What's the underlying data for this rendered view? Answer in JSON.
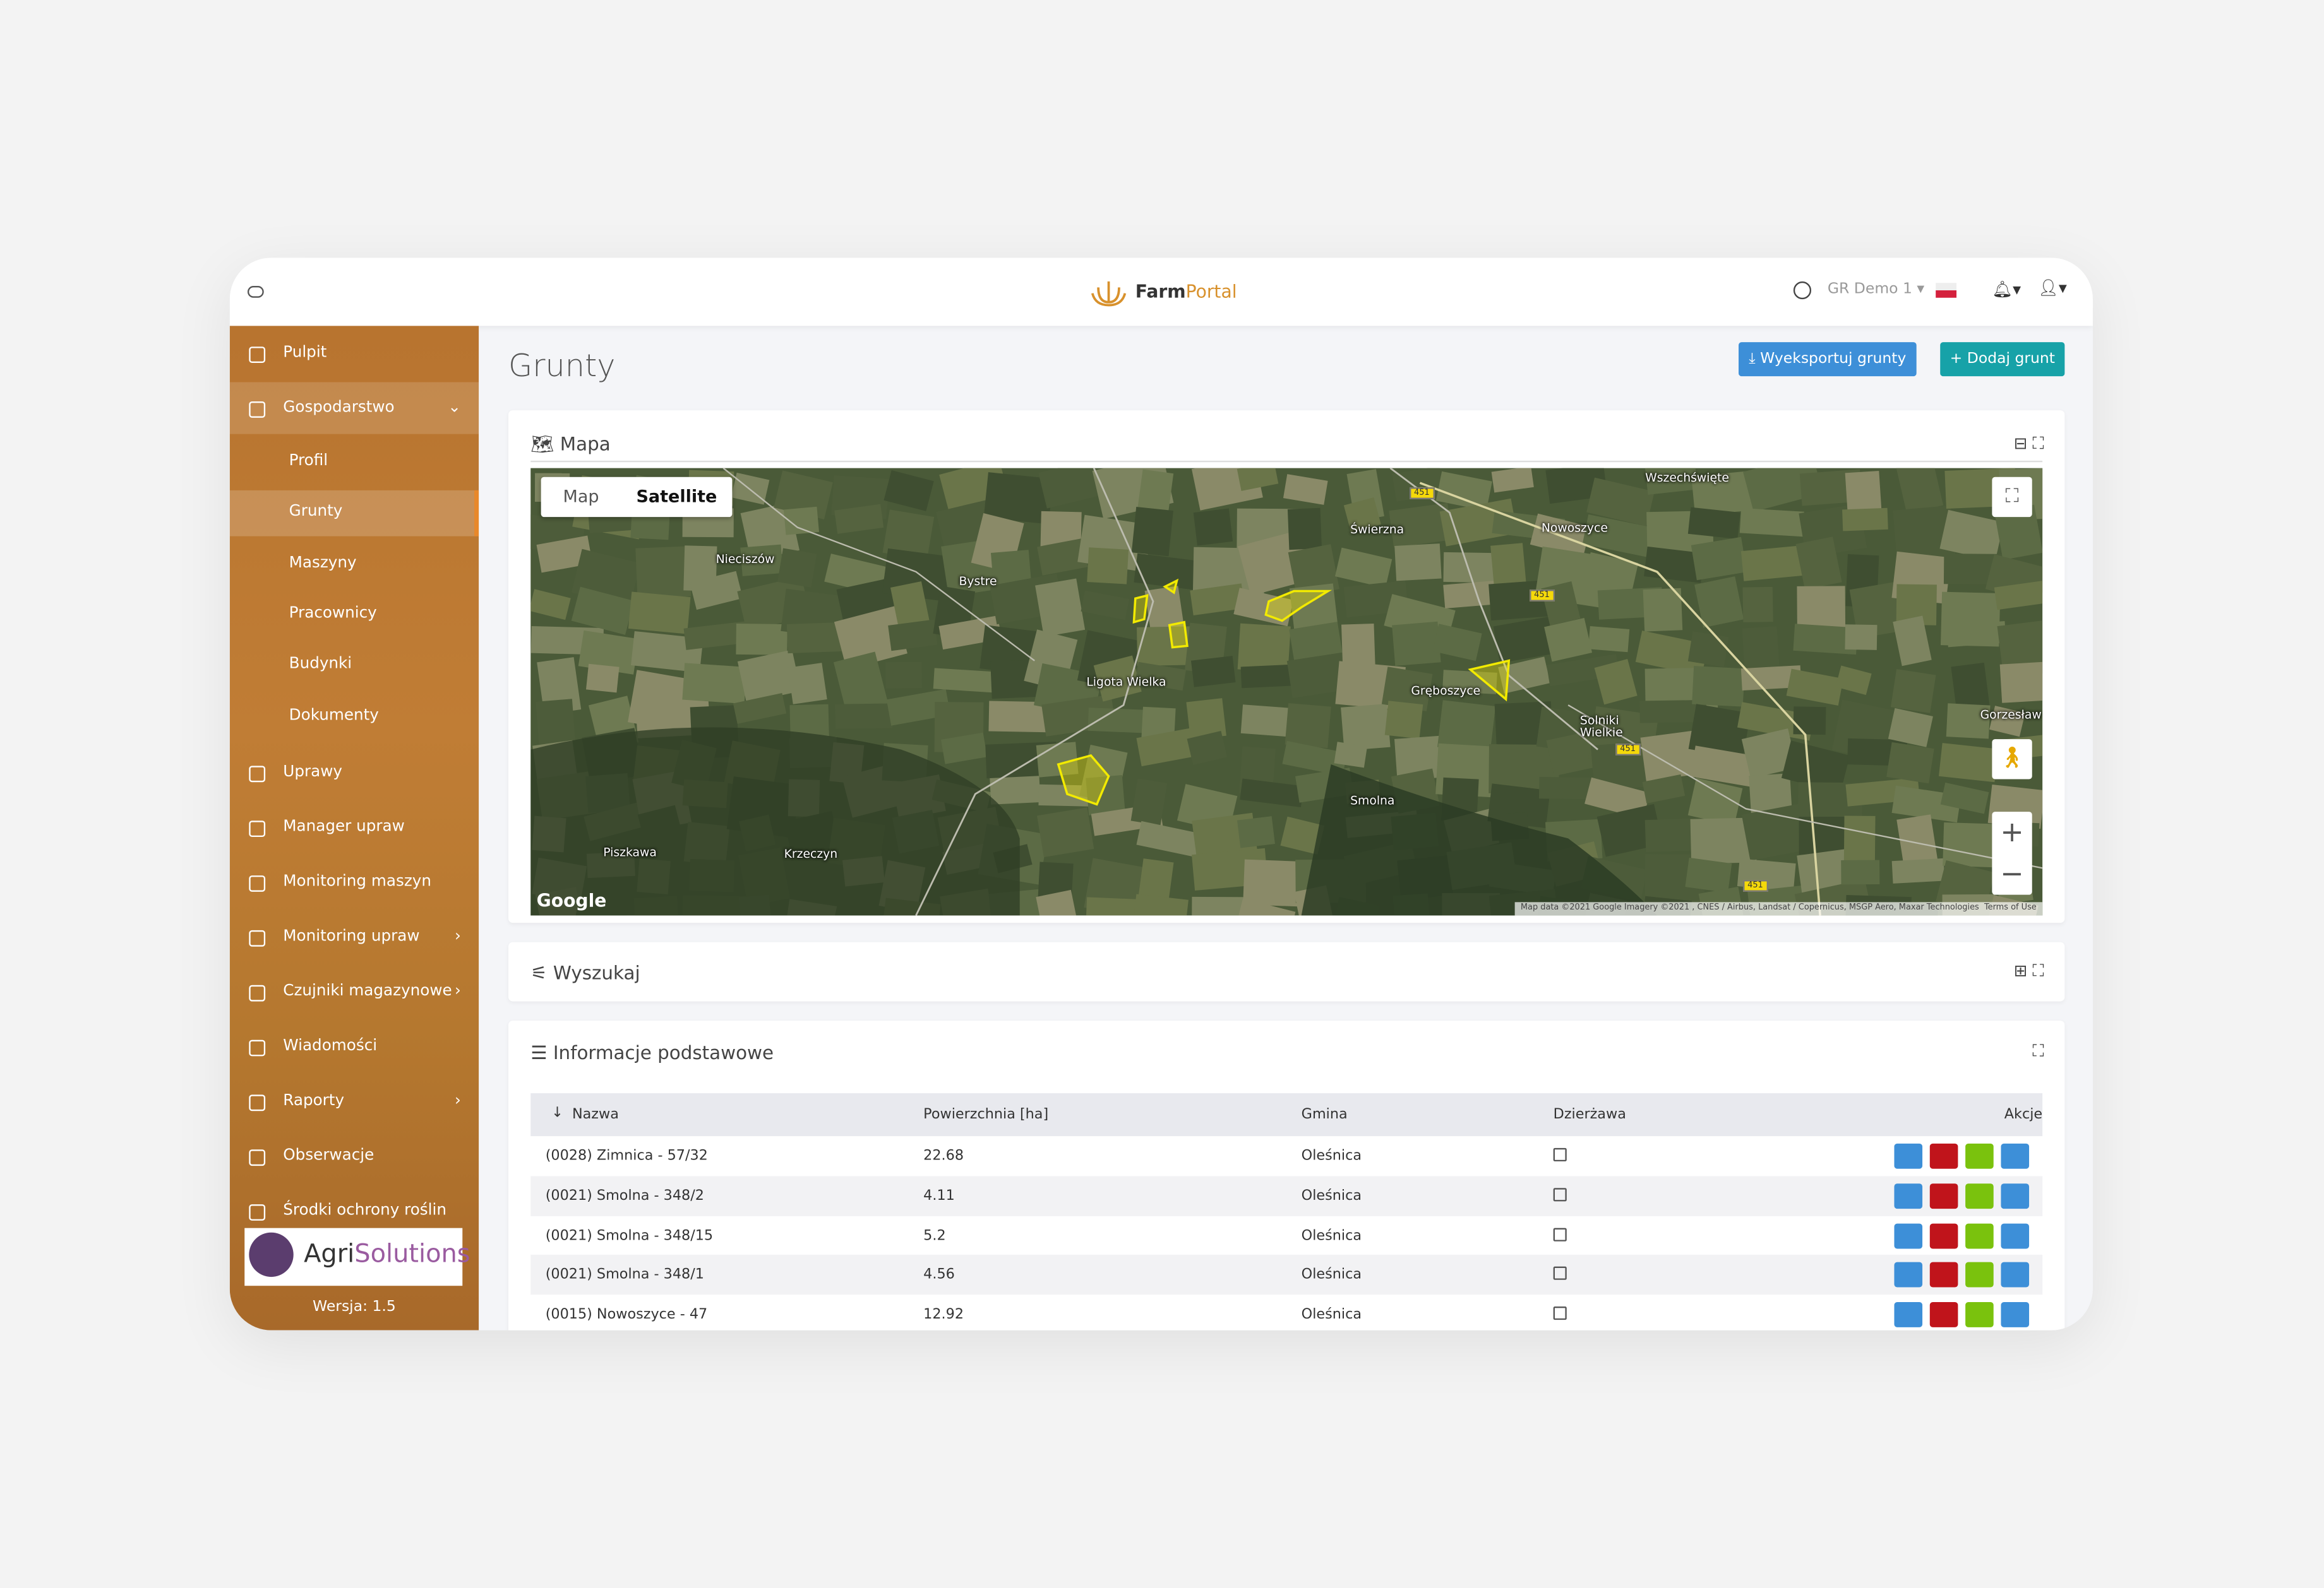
{
  "header": {
    "brand_first": "Farm",
    "brand_second": "Portal",
    "user": "GR Demo 1"
  },
  "sidebar": {
    "items": [
      "Pulpit",
      "Gospodarstwo"
    ],
    "sub_items": [
      "Profil",
      "Grunty",
      "Maszyny",
      "Pracownicy",
      "Budynki",
      "Dokumenty"
    ],
    "more_items": [
      "Uprawy",
      "Manager upraw",
      "Monitoring maszyn",
      "Monitoring upraw",
      "Czujniki magazynowe",
      "Wiadomości",
      "Raporty",
      "Obserwacje",
      "Środki ochrony roślin"
    ],
    "logo_first": "Agri",
    "logo_second": "Solutions",
    "version": "Wersja: 1.5"
  },
  "page": {
    "title": "Grunty",
    "export_button": "Wyeksportuj grunty",
    "add_button": "Dodaj grunt"
  },
  "map": {
    "title": "Mapa",
    "tabs": [
      "Map",
      "Satellite"
    ],
    "places": [
      "Wszechświęte",
      "Nowoszyce",
      "Świerzna",
      "Nieciszów",
      "Bystre",
      "Ligota Wielka",
      "Gręboszyce",
      "Solniki Wielkie",
      "Gorzesław",
      "Smolna",
      "Piszkawa",
      "Krzeczyn"
    ],
    "roads": [
      "451",
      "451",
      "451",
      "451"
    ],
    "google": "Google",
    "attribution": "Map data ©2021 Google Imagery ©2021 , CNES / Airbus, Landsat / Copernicus, MSGP Aero, Maxar Technologies",
    "terms": "Terms of Use"
  },
  "search": {
    "title": "Wyszukaj"
  },
  "table": {
    "title": "Informacje podstawowe",
    "columns": [
      "Nazwa",
      "Powierzchnia [ha]",
      "Gmina",
      "Dzierżawa",
      "Akcje"
    ],
    "rows": [
      [
        "(0028) Zimnica - 57/32",
        22.68,
        "Oleśnica"
      ],
      [
        "(0021) Smolna - 348/2",
        4.11,
        "Oleśnica"
      ],
      [
        "(0021) Smolna - 348/15",
        5.2,
        "Oleśnica"
      ],
      [
        "(0021) Smolna - 348/1",
        4.56,
        "Oleśnica"
      ],
      [
        "(0015) Nowoszyce - 47",
        12.92,
        "Oleśnica"
      ]
    ]
  }
}
